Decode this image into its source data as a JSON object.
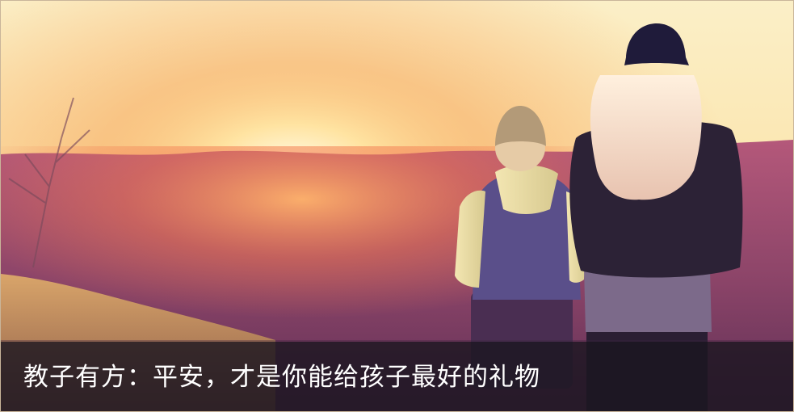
{
  "article": {
    "title": "教子有方：平安，才是你能给孩子最好的礼物"
  },
  "image": {
    "colors": {
      "sky_top": "#fbe9b8",
      "sun": "#fff7d6",
      "haze": "#f4a05a",
      "hills": "#7b3f63",
      "grass": "#c48a55",
      "flare": "#e8326e",
      "caption_bg": "#16141c"
    }
  }
}
